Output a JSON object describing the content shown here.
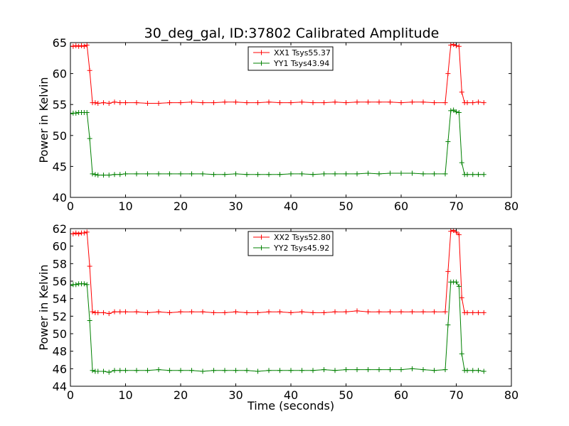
{
  "figure": {
    "title": "30_deg_gal, ID:37802 Calibrated Amplitude"
  },
  "colors": {
    "background": "#ffffff",
    "axes": "#000000",
    "xx_series": "#ff0000",
    "yy_series": "#008000"
  },
  "chart_data": [
    {
      "type": "line",
      "title": "30_deg_gal, ID:37802 Calibrated Amplitude",
      "xlabel": "",
      "ylabel": "Power in Kelvin",
      "xlim": [
        0,
        80
      ],
      "ylim": [
        40,
        65
      ],
      "xticks": [
        0,
        10,
        20,
        30,
        40,
        50,
        60,
        70,
        80
      ],
      "yticks": [
        40,
        45,
        50,
        55,
        60,
        65
      ],
      "grid": false,
      "legend_position": "top-center",
      "markers": "plus",
      "series": [
        {
          "name": "XX1 Tsys55.37",
          "color": "#ff0000",
          "x": [
            0,
            0.5,
            1,
            1.5,
            2,
            2.5,
            3,
            3.5,
            4,
            4.5,
            5,
            6,
            7,
            8,
            9,
            10,
            12,
            14,
            16,
            18,
            20,
            22,
            24,
            26,
            28,
            30,
            32,
            34,
            36,
            38,
            40,
            42,
            44,
            46,
            48,
            50,
            52,
            54,
            56,
            58,
            60,
            62,
            64,
            66,
            68,
            68.5,
            69,
            69.5,
            70,
            70.5,
            71,
            71.5,
            72,
            73,
            74,
            75
          ],
          "y": [
            64.4,
            64.4,
            64.5,
            64.4,
            64.5,
            64.4,
            64.6,
            60.5,
            55.3,
            55.3,
            55.2,
            55.3,
            55.2,
            55.4,
            55.3,
            55.3,
            55.3,
            55.2,
            55.2,
            55.3,
            55.3,
            55.4,
            55.3,
            55.3,
            55.4,
            55.4,
            55.3,
            55.3,
            55.4,
            55.3,
            55.3,
            55.4,
            55.3,
            55.3,
            55.4,
            55.3,
            55.4,
            55.4,
            55.4,
            55.4,
            55.3,
            55.4,
            55.4,
            55.3,
            55.3,
            60.0,
            64.6,
            64.7,
            64.5,
            64.4,
            57.0,
            55.3,
            55.3,
            55.3,
            55.4,
            55.3
          ]
        },
        {
          "name": "YY1 Tsys43.94",
          "color": "#008000",
          "x": [
            0,
            0.5,
            1,
            1.5,
            2,
            2.5,
            3,
            3.5,
            4,
            4.5,
            5,
            6,
            7,
            8,
            9,
            10,
            12,
            14,
            16,
            18,
            20,
            22,
            24,
            26,
            28,
            30,
            32,
            34,
            36,
            38,
            40,
            42,
            44,
            46,
            48,
            50,
            52,
            54,
            56,
            58,
            60,
            62,
            64,
            66,
            68,
            68.5,
            69,
            69.5,
            70,
            70.5,
            71,
            71.5,
            72,
            73,
            74,
            75
          ],
          "y": [
            53.5,
            53.6,
            53.6,
            53.7,
            53.7,
            53.7,
            53.7,
            49.5,
            43.8,
            43.7,
            43.6,
            43.6,
            43.6,
            43.7,
            43.7,
            43.8,
            43.8,
            43.8,
            43.8,
            43.8,
            43.8,
            43.8,
            43.8,
            43.7,
            43.7,
            43.8,
            43.7,
            43.7,
            43.7,
            43.7,
            43.8,
            43.8,
            43.7,
            43.8,
            43.8,
            43.8,
            43.8,
            43.9,
            43.8,
            43.9,
            43.9,
            43.9,
            43.8,
            43.8,
            43.8,
            49.0,
            54.0,
            54.1,
            53.8,
            53.7,
            45.6,
            43.7,
            43.7,
            43.7,
            43.7,
            43.7
          ]
        }
      ]
    },
    {
      "type": "line",
      "title": "",
      "xlabel": "Time (seconds)",
      "ylabel": "Power in Kelvin",
      "xlim": [
        0,
        80
      ],
      "ylim": [
        44,
        62
      ],
      "xticks": [
        0,
        10,
        20,
        30,
        40,
        50,
        60,
        70,
        80
      ],
      "yticks": [
        44,
        46,
        48,
        50,
        52,
        54,
        56,
        58,
        60,
        62
      ],
      "grid": false,
      "legend_position": "top-center",
      "markers": "plus",
      "series": [
        {
          "name": "XX2 Tsys52.80",
          "color": "#ff0000",
          "x": [
            0,
            0.5,
            1,
            1.5,
            2,
            2.5,
            3,
            3.5,
            4,
            4.5,
            5,
            6,
            7,
            8,
            9,
            10,
            12,
            14,
            16,
            18,
            20,
            22,
            24,
            26,
            28,
            30,
            32,
            34,
            36,
            38,
            40,
            42,
            44,
            46,
            48,
            50,
            52,
            54,
            56,
            58,
            60,
            62,
            64,
            66,
            68,
            68.5,
            69,
            69.5,
            70,
            70.5,
            71,
            71.5,
            72,
            73,
            74,
            75
          ],
          "y": [
            61.4,
            61.4,
            61.5,
            61.4,
            61.5,
            61.5,
            61.6,
            57.7,
            52.5,
            52.4,
            52.4,
            52.4,
            52.3,
            52.5,
            52.5,
            52.5,
            52.5,
            52.4,
            52.5,
            52.4,
            52.5,
            52.5,
            52.5,
            52.4,
            52.4,
            52.5,
            52.4,
            52.4,
            52.5,
            52.5,
            52.4,
            52.5,
            52.4,
            52.4,
            52.5,
            52.5,
            52.6,
            52.5,
            52.5,
            52.5,
            52.5,
            52.5,
            52.5,
            52.5,
            52.5,
            57.1,
            61.7,
            61.8,
            61.6,
            61.3,
            54.1,
            52.4,
            52.4,
            52.4,
            52.4,
            52.4
          ]
        },
        {
          "name": "YY2 Tsys45.92",
          "color": "#008000",
          "x": [
            0,
            0.5,
            1,
            1.5,
            2,
            2.5,
            3,
            3.5,
            4,
            4.5,
            5,
            6,
            7,
            8,
            9,
            10,
            12,
            14,
            16,
            18,
            20,
            22,
            24,
            26,
            28,
            30,
            32,
            34,
            36,
            38,
            40,
            42,
            44,
            46,
            48,
            50,
            52,
            54,
            56,
            58,
            60,
            62,
            64,
            66,
            68,
            68.5,
            69,
            69.5,
            70,
            70.5,
            71,
            71.5,
            72,
            73,
            74,
            75
          ],
          "y": [
            55.5,
            55.6,
            55.6,
            55.7,
            55.7,
            55.7,
            55.6,
            51.5,
            45.8,
            45.7,
            45.7,
            45.7,
            45.6,
            45.8,
            45.8,
            45.8,
            45.8,
            45.8,
            45.9,
            45.8,
            45.8,
            45.8,
            45.7,
            45.8,
            45.8,
            45.8,
            45.8,
            45.7,
            45.8,
            45.8,
            45.8,
            45.8,
            45.8,
            45.9,
            45.8,
            45.9,
            45.9,
            45.9,
            45.9,
            45.9,
            45.9,
            46.0,
            45.9,
            45.8,
            45.9,
            51.0,
            55.9,
            55.9,
            55.9,
            55.4,
            47.7,
            45.8,
            45.8,
            45.8,
            45.8,
            45.7
          ]
        }
      ]
    }
  ]
}
